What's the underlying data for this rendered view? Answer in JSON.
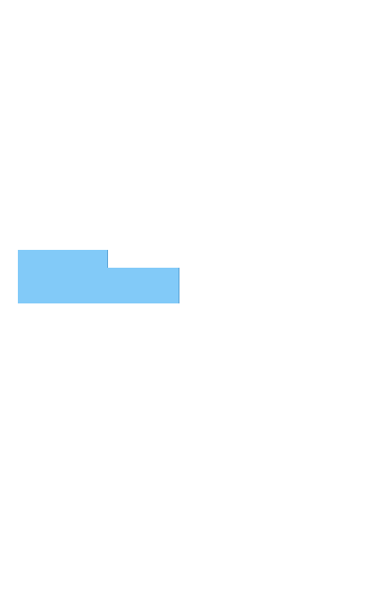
{
  "colors": {
    "page_background": "#ffffff",
    "block_fill": "#82caf8",
    "block_edge": "#5aa3d6"
  }
}
